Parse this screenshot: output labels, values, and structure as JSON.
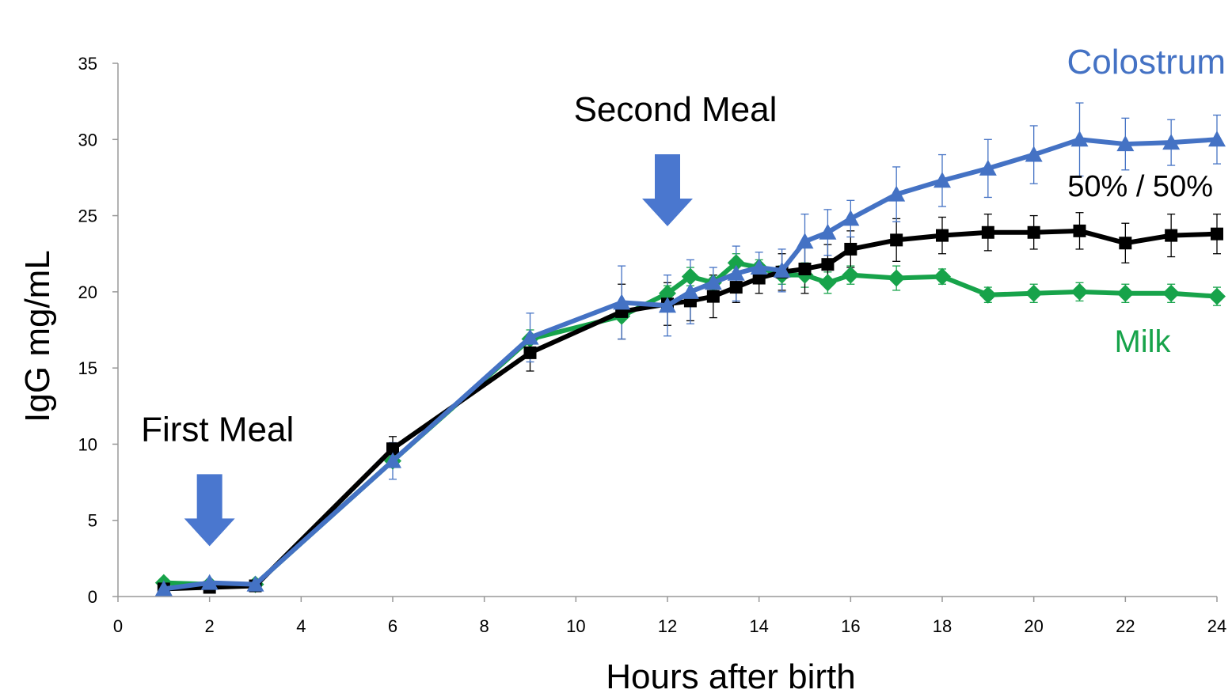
{
  "chart_data": {
    "type": "line",
    "xlabel": "Hours after birth",
    "ylabel": "IgG mg/mL",
    "xlim": [
      0,
      24
    ],
    "ylim": [
      0,
      35
    ],
    "xticks": [
      0,
      2,
      4,
      6,
      8,
      10,
      12,
      14,
      16,
      18,
      20,
      22,
      24
    ],
    "yticks": [
      0,
      5,
      10,
      15,
      20,
      25,
      30,
      35
    ],
    "grid": false,
    "annotations": [
      {
        "text": "First Meal",
        "x": 2,
        "y": 10,
        "arrow": true
      },
      {
        "text": "Second Meal",
        "x": 12,
        "y": 31,
        "arrow": true
      }
    ],
    "series": [
      {
        "name": "Milk",
        "color": "#17a34a",
        "marker": "diamond",
        "x": [
          1,
          2,
          3,
          6,
          9,
          11,
          12,
          12.5,
          13,
          13.5,
          14,
          14.5,
          15,
          15.5,
          16,
          17,
          18,
          19,
          20,
          21,
          22,
          23,
          24
        ],
        "y": [
          0.9,
          0.8,
          0.8,
          8.9,
          16.9,
          18.4,
          19.9,
          21.0,
          20.6,
          21.9,
          21.6,
          21.1,
          21.1,
          20.6,
          21.1,
          20.9,
          21.0,
          19.8,
          19.9,
          20.0,
          19.9,
          19.9,
          19.7
        ],
        "err": [
          0,
          0,
          0,
          0,
          0.6,
          0,
          0.5,
          0.6,
          0.5,
          0.6,
          0.5,
          0.6,
          0.8,
          0.7,
          0.6,
          0.8,
          0.5,
          0.5,
          0.6,
          0.6,
          0.6,
          0.6,
          0.6
        ]
      },
      {
        "name": "50% / 50%",
        "color": "#000000",
        "marker": "square",
        "x": [
          1,
          2,
          3,
          6,
          9,
          11,
          12,
          12.5,
          13,
          13.5,
          14,
          14.5,
          15,
          15.5,
          16,
          17,
          18,
          19,
          20,
          21,
          22,
          23,
          24
        ],
        "y": [
          0.5,
          0.6,
          0.7,
          9.7,
          16.0,
          18.7,
          19.2,
          19.4,
          19.7,
          20.3,
          20.9,
          21.3,
          21.5,
          21.8,
          22.8,
          23.4,
          23.7,
          23.9,
          23.9,
          24.0,
          23.2,
          23.7,
          23.8
        ],
        "err": [
          0,
          0,
          0,
          0.8,
          1.2,
          1.8,
          1.4,
          1.3,
          1.4,
          1.0,
          1.0,
          1.2,
          1.6,
          1.3,
          1.2,
          1.4,
          1.2,
          1.2,
          1.1,
          1.2,
          1.3,
          1.4,
          1.3
        ]
      },
      {
        "name": "Colostrum",
        "color": "#4472c4",
        "marker": "triangle",
        "x": [
          1,
          2,
          3,
          6,
          9,
          11,
          12,
          12.5,
          13,
          13.5,
          14,
          14.5,
          15,
          15.5,
          16,
          17,
          18,
          19,
          20,
          21,
          22,
          23,
          24
        ],
        "y": [
          0.5,
          0.9,
          0.8,
          8.9,
          17.0,
          19.3,
          19.1,
          20.0,
          20.6,
          21.2,
          21.6,
          21.4,
          23.3,
          23.9,
          24.8,
          26.4,
          27.3,
          28.1,
          29.0,
          30.0,
          29.7,
          29.8,
          30.0
        ],
        "err": [
          0,
          0,
          0,
          1.2,
          1.6,
          2.4,
          2.0,
          2.1,
          1.0,
          1.8,
          1.0,
          1.4,
          1.8,
          1.5,
          1.2,
          1.8,
          1.7,
          1.9,
          1.9,
          2.4,
          1.7,
          1.5,
          1.6
        ]
      }
    ]
  }
}
